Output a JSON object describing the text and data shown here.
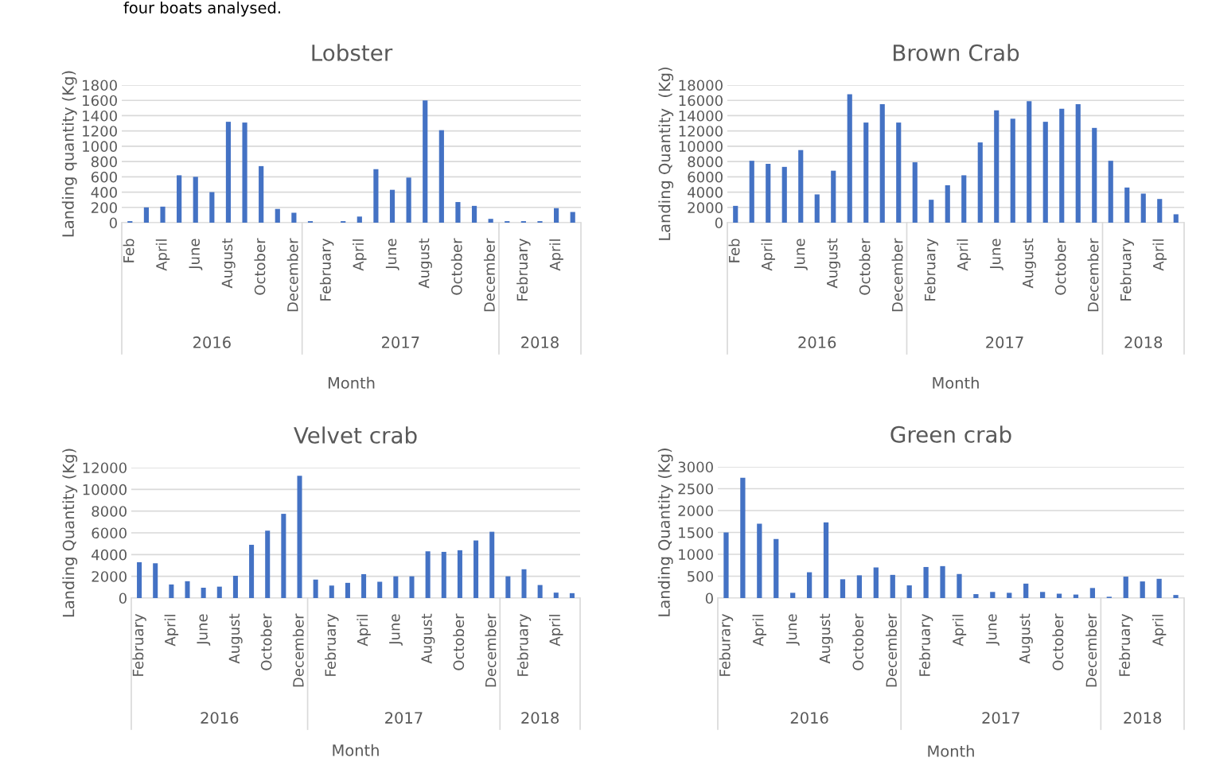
{
  "chart_data": [
    {
      "type": "bar",
      "title": "Lobster",
      "xlabel": "Month",
      "ylabel": "Landing quantity (Kg)",
      "color": "#4472c4",
      "grid": "y",
      "ylim": [
        0,
        1800
      ],
      "yticks": [
        0,
        200,
        400,
        600,
        800,
        1000,
        1200,
        1400,
        1600,
        1800
      ],
      "categories": [
        "Feb",
        null,
        "April",
        null,
        "June",
        null,
        "August",
        null,
        "October",
        null,
        "December",
        null,
        "February",
        null,
        "April",
        null,
        "June",
        null,
        "August",
        null,
        "October",
        null,
        "December",
        null,
        "February",
        null,
        "April",
        null
      ],
      "values": [
        20,
        200,
        210,
        620,
        600,
        400,
        1320,
        1310,
        740,
        180,
        130,
        20,
        0,
        20,
        80,
        700,
        430,
        590,
        1600,
        1210,
        270,
        220,
        50,
        20,
        20,
        20,
        190,
        140
      ],
      "annotations": [
        "four boats analysed.",
        "2016",
        "2017",
        "2018"
      ]
    },
    {
      "type": "bar",
      "title": "Brown Crab",
      "xlabel": "Month",
      "ylabel": "Landing Quantity  (Kg)",
      "color": "#4472c4",
      "grid": "y",
      "ylim": [
        0,
        18000
      ],
      "yticks": [
        0,
        2000,
        4000,
        6000,
        8000,
        10000,
        12000,
        14000,
        16000,
        18000
      ],
      "categories": [
        "Feb",
        null,
        "April",
        null,
        "June",
        null,
        "August",
        null,
        "October",
        null,
        "December",
        null,
        "February",
        null,
        "April",
        null,
        "June",
        null,
        "August",
        null,
        "October",
        null,
        "December",
        null,
        "February",
        null,
        "April",
        null
      ],
      "values": [
        2200,
        8100,
        7700,
        7300,
        9500,
        3700,
        6800,
        16800,
        13100,
        15500,
        13100,
        7900,
        3000,
        4900,
        6200,
        10500,
        14700,
        13600,
        15900,
        13200,
        14900,
        15500,
        12400,
        8100,
        4600,
        3800,
        3100,
        1100
      ],
      "annotations": [
        "2016",
        "2017",
        "2018"
      ]
    },
    {
      "type": "bar",
      "title": "Velvet crab",
      "xlabel": "Month",
      "ylabel": "Landing Quantity (Kg)",
      "color": "#4472c4",
      "grid": "y",
      "ylim": [
        0,
        12000
      ],
      "yticks": [
        0,
        2000,
        4000,
        6000,
        8000,
        10000,
        12000
      ],
      "categories": [
        "February",
        null,
        "April",
        null,
        "June",
        null,
        "August",
        null,
        "October",
        null,
        "December",
        null,
        "February",
        null,
        "April",
        null,
        "June",
        null,
        "August",
        null,
        "October",
        null,
        "December",
        null,
        "February",
        null,
        "April",
        null
      ],
      "values": [
        3300,
        3200,
        1250,
        1550,
        950,
        1050,
        2050,
        4900,
        6200,
        7750,
        11250,
        1700,
        1150,
        1400,
        2200,
        1500,
        2000,
        2000,
        4300,
        4250,
        4400,
        5300,
        6100,
        2000,
        2650,
        1200,
        500,
        450
      ],
      "annotations": [
        "2016",
        "2017",
        "2018"
      ]
    },
    {
      "type": "bar",
      "title": "Green crab",
      "xlabel": "Month",
      "ylabel": "Landing Quantity (Kg)",
      "color": "#4472c4",
      "grid": "y",
      "ylim": [
        0,
        3000
      ],
      "yticks": [
        0,
        500,
        1000,
        1500,
        2000,
        2500,
        3000
      ],
      "categories": [
        "Feburary",
        null,
        "April",
        null,
        "June",
        null,
        "August",
        null,
        "October",
        null,
        "December",
        null,
        "February",
        null,
        "April",
        null,
        "June",
        null,
        "August",
        null,
        "October",
        null,
        "December",
        null,
        "February",
        null,
        "April",
        null
      ],
      "values": [
        1500,
        2750,
        1700,
        1350,
        120,
        590,
        1730,
        430,
        520,
        700,
        530,
        290,
        710,
        730,
        550,
        90,
        140,
        120,
        330,
        140,
        100,
        80,
        230,
        30,
        490,
        380,
        440,
        70
      ],
      "annotations": [
        "2016",
        "2017",
        "2018"
      ]
    }
  ]
}
